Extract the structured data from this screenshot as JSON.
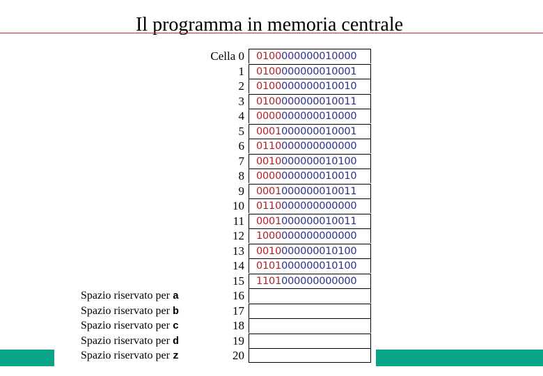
{
  "title": "Il programma in memoria centrale",
  "reserved_prefix": "Spazio riservato per",
  "cells": [
    {
      "label": "Cella 0",
      "op": "0100",
      "addr": "000000010000",
      "reserved": ""
    },
    {
      "label": "1",
      "op": "0100",
      "addr": "000000010001",
      "reserved": ""
    },
    {
      "label": "2",
      "op": "0100",
      "addr": "000000010010",
      "reserved": ""
    },
    {
      "label": "3",
      "op": "0100",
      "addr": "000000010011",
      "reserved": ""
    },
    {
      "label": "4",
      "op": "0000",
      "addr": "000000010000",
      "reserved": ""
    },
    {
      "label": "5",
      "op": "0001",
      "addr": "000000010001",
      "reserved": ""
    },
    {
      "label": "6",
      "op": "0110",
      "addr": "000000000000",
      "reserved": ""
    },
    {
      "label": "7",
      "op": "0010",
      "addr": "000000010100",
      "reserved": ""
    },
    {
      "label": "8",
      "op": "0000",
      "addr": "000000010010",
      "reserved": ""
    },
    {
      "label": "9",
      "op": "0001",
      "addr": "000000010011",
      "reserved": ""
    },
    {
      "label": "10",
      "op": "0110",
      "addr": "000000000000",
      "reserved": ""
    },
    {
      "label": "11",
      "op": "0001",
      "addr": "000000010011",
      "reserved": ""
    },
    {
      "label": "12",
      "op": "1000",
      "addr": "000000000000",
      "reserved": ""
    },
    {
      "label": "13",
      "op": "0010",
      "addr": "000000010100",
      "reserved": ""
    },
    {
      "label": "14",
      "op": "0101",
      "addr": "000000010100",
      "reserved": ""
    },
    {
      "label": "15",
      "op": "1101",
      "addr": "000000000000",
      "reserved": ""
    },
    {
      "label": "16",
      "op": "",
      "addr": "",
      "reserved": "a"
    },
    {
      "label": "17",
      "op": "",
      "addr": "",
      "reserved": "b"
    },
    {
      "label": "18",
      "op": "",
      "addr": "",
      "reserved": "c"
    },
    {
      "label": "19",
      "op": "",
      "addr": "",
      "reserved": "d"
    },
    {
      "label": "20",
      "op": "",
      "addr": "",
      "reserved": "z"
    }
  ],
  "colors": {
    "opcode": "#b0202a",
    "address": "#2b2f8f",
    "accent": "#0aa586",
    "rule": "#cc2a3a"
  }
}
